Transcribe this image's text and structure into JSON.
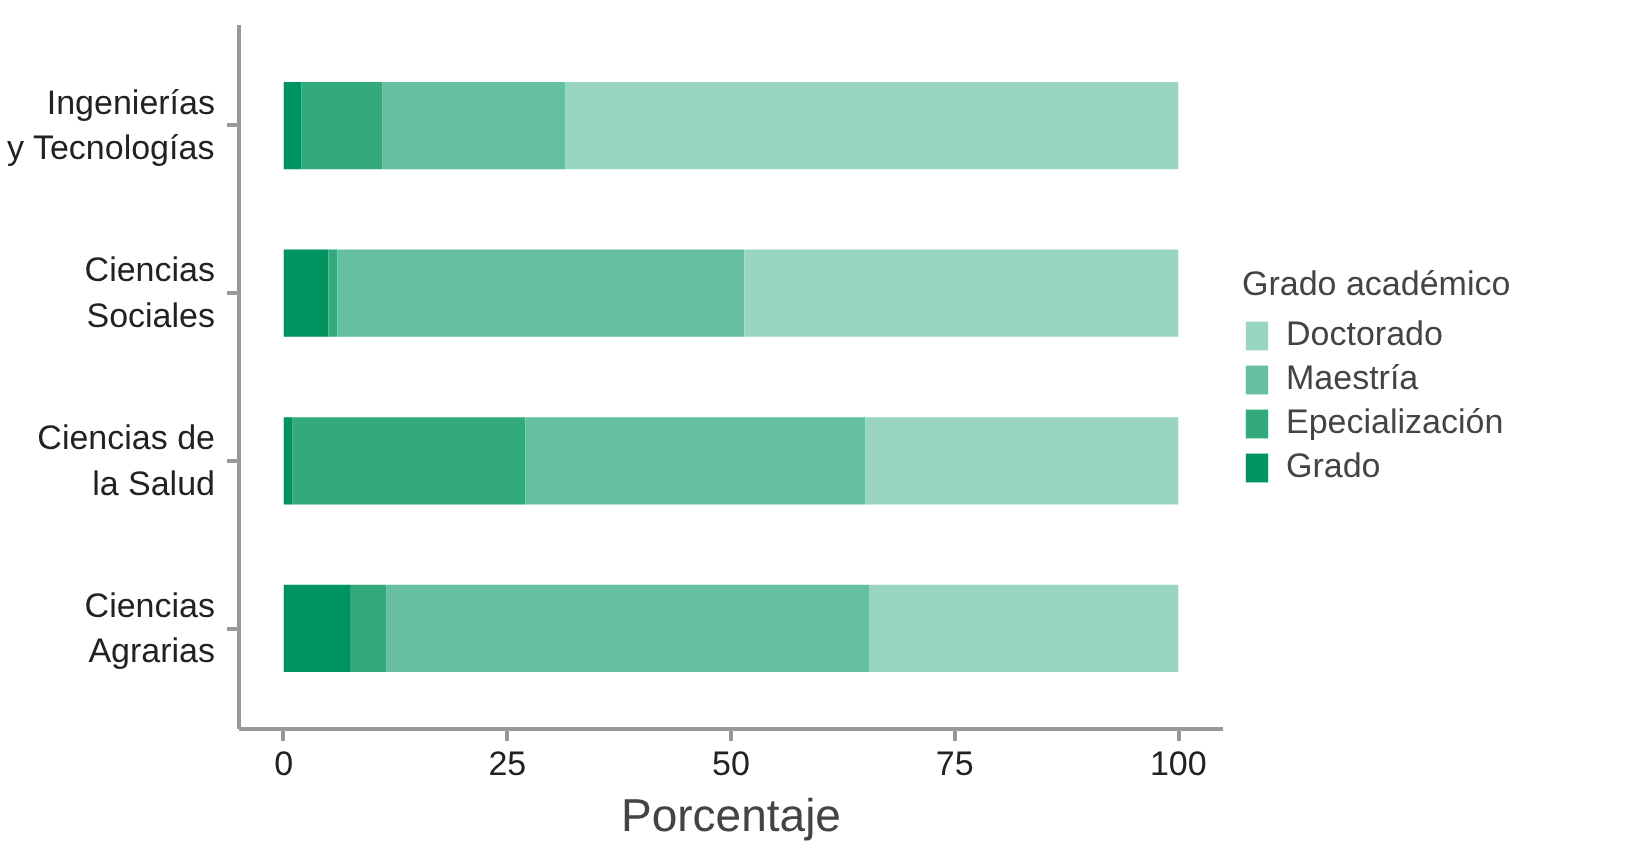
{
  "chart_data": {
    "type": "bar",
    "orientation": "horizontal",
    "stacked": true,
    "xlabel": "Porcentaje",
    "legend_title": "Grado académico",
    "legend": "right",
    "categories": [
      "Ingenierías\ny Tecnologías",
      "Ciencias\nSociales",
      "Ciencias de\nla Salud",
      "Ciencias\nAgrarias"
    ],
    "series": [
      {
        "name": "Grado",
        "color": "#009460",
        "values": [
          2,
          5,
          1,
          7.5
        ]
      },
      {
        "name": "Epecialización",
        "color": "#33aa7d",
        "values": [
          9,
          1,
          26,
          4
        ]
      },
      {
        "name": "Maestría",
        "color": "#66bf9f",
        "values": [
          20.5,
          45.5,
          38,
          54
        ]
      },
      {
        "name": "Doctorado",
        "color": "#9ad5bf",
        "values": [
          68.5,
          48.5,
          35,
          34.5
        ]
      }
    ],
    "xlim": [
      -5,
      105
    ],
    "xticks": [
      0,
      25,
      50,
      75,
      100
    ],
    "grid": false
  }
}
